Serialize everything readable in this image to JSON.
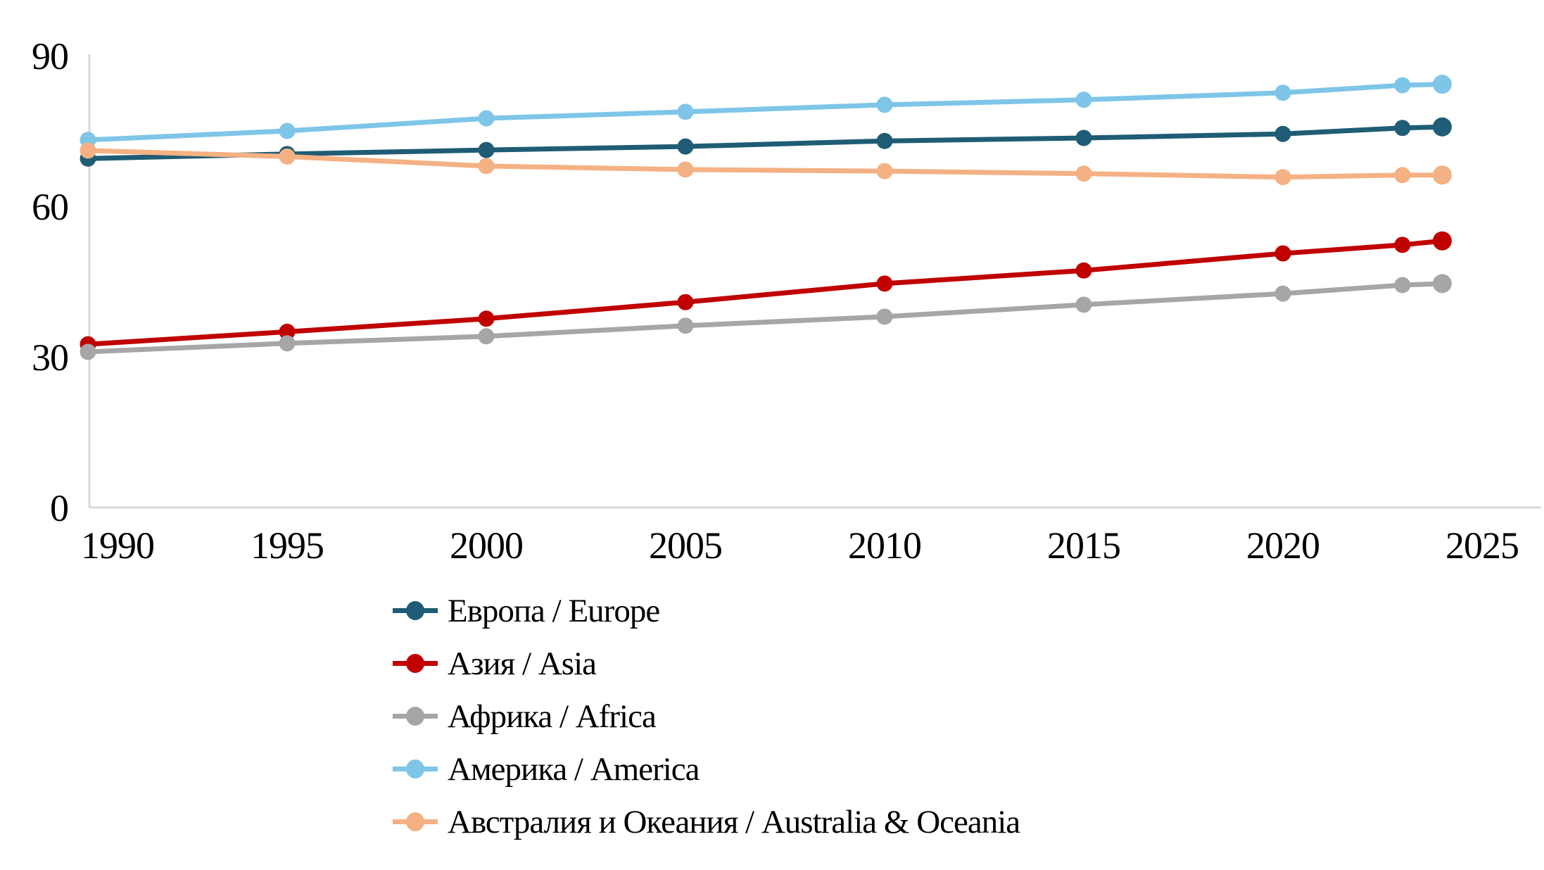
{
  "chart_data": {
    "type": "line",
    "x": [
      1990,
      1995,
      2000,
      2005,
      2010,
      2015,
      2020,
      2023,
      2024
    ],
    "series": [
      {
        "name": "Европа / Europe",
        "color": "#1F5C75",
        "values": [
          69.5,
          70.4,
          71.2,
          71.9,
          73.0,
          73.6,
          74.4,
          75.6,
          75.8
        ]
      },
      {
        "name": "Азия / Asia",
        "color": "#C00000",
        "values": [
          32.5,
          35.0,
          37.6,
          40.9,
          44.6,
          47.2,
          50.6,
          52.3,
          53.1
        ]
      },
      {
        "name": "Африка / Africa",
        "color": "#A6A6A6",
        "values": [
          31.0,
          32.7,
          34.1,
          36.2,
          38.0,
          40.4,
          42.6,
          44.3,
          44.6
        ]
      },
      {
        "name": "Америка / America",
        "color": "#7EC5E8",
        "values": [
          73.2,
          75.0,
          77.5,
          78.8,
          80.2,
          81.2,
          82.6,
          84.1,
          84.3
        ]
      },
      {
        "name": "Австралия и Океания / Australia & Oceania",
        "color": "#F4B183",
        "values": [
          71.1,
          69.9,
          68.0,
          67.3,
          67.0,
          66.5,
          65.8,
          66.2,
          66.2
        ]
      }
    ],
    "xticks": [
      "1990",
      "1995",
      "2000",
      "2005",
      "2010",
      "2015",
      "2020",
      "2025"
    ],
    "yticks": [
      "0",
      "30",
      "60",
      "90"
    ],
    "xlim": [
      1990,
      2026.5
    ],
    "ylim": [
      0,
      90
    ],
    "grid": false,
    "legend_position": "bottom-left",
    "axis_color": "#D9D9D9",
    "title": ""
  }
}
